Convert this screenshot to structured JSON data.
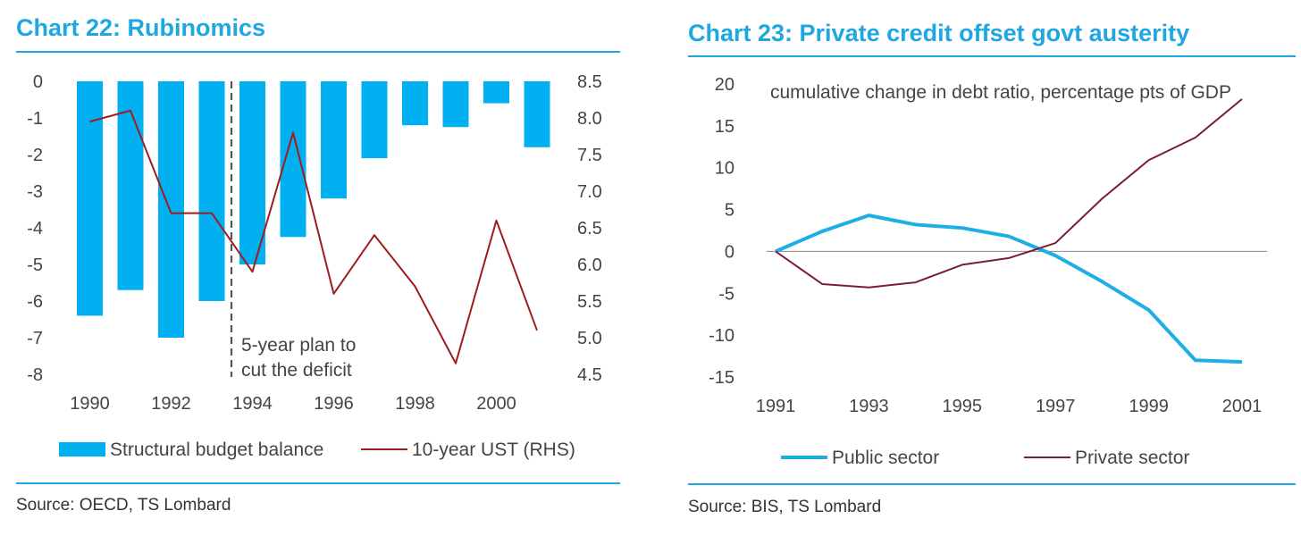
{
  "charts": [
    {
      "title": "Chart 22: Rubinomics",
      "source": "Source: OECD, TS Lombard",
      "annotation": [
        "5-year plan to",
        "cut the deficit"
      ],
      "legend": {
        "bar_label": "Structural budget balance",
        "line_label": "10-year UST (RHS)"
      }
    },
    {
      "title": "Chart 23: Private credit offset govt austerity",
      "source": "Source: BIS, TS Lombard",
      "subtitle": "cumulative change in debt ratio, percentage pts of GDP",
      "legend": {
        "series_1": "Public sector",
        "series_2": "Private sector"
      }
    }
  ],
  "colors": {
    "accent": "#1ea7e1",
    "bar": "#00b0f0",
    "line_red": "#a01c1c",
    "line_maroon": "#7b1c38",
    "line_blue": "#1eaee6"
  },
  "chart_data": [
    {
      "type": "bar",
      "title": "Chart 22: Rubinomics",
      "categories": [
        "1990",
        "1991",
        "1992",
        "1993",
        "1994",
        "1995",
        "1996",
        "1997",
        "1998",
        "1999",
        "2000",
        "2001"
      ],
      "x_tick_labels": [
        "1990",
        "1992",
        "1994",
        "1996",
        "1998",
        "2000"
      ],
      "series": [
        {
          "name": "Structural budget balance",
          "type": "bar",
          "axis": "left",
          "values": [
            -6.4,
            -5.7,
            -7.0,
            -6.0,
            -5.0,
            -4.25,
            -3.2,
            -2.1,
            -1.2,
            -1.25,
            -0.6,
            -1.8
          ]
        },
        {
          "name": "10-year UST (RHS)",
          "type": "line",
          "axis": "right",
          "values": [
            7.95,
            8.1,
            6.7,
            6.7,
            5.9,
            7.8,
            5.6,
            6.4,
            5.7,
            4.65,
            6.6,
            5.1
          ]
        }
      ],
      "ylim_left": [
        -8,
        0
      ],
      "yticks_left": [
        "0",
        "-1",
        "-2",
        "-3",
        "-4",
        "-5",
        "-6",
        "-7",
        "-8"
      ],
      "ylim_right": [
        4.5,
        8.5
      ],
      "yticks_right": [
        "8.5",
        "8.0",
        "7.5",
        "7.0",
        "6.5",
        "6.0",
        "5.5",
        "5.0",
        "4.5"
      ],
      "vline_label_between": [
        "1993",
        "1994"
      ],
      "grid": false,
      "legend": "bottom"
    },
    {
      "type": "line",
      "title": "Chart 23: Private credit offset govt austerity",
      "subtitle": "cumulative change in debt ratio, percentage pts of GDP",
      "x": [
        1991,
        1992,
        1993,
        1994,
        1995,
        1996,
        1997,
        1998,
        1999,
        2000,
        2001
      ],
      "x_tick_labels": [
        "1991",
        "1993",
        "1995",
        "1997",
        "1999",
        "2001"
      ],
      "series": [
        {
          "name": "Public sector",
          "values": [
            0,
            2.4,
            4.3,
            3.2,
            2.8,
            1.8,
            -0.5,
            -3.6,
            -7.0,
            -13.0,
            -13.2
          ]
        },
        {
          "name": "Private sector",
          "values": [
            0,
            -3.9,
            -4.3,
            -3.7,
            -1.6,
            -0.8,
            1.0,
            6.3,
            10.9,
            13.6,
            18.2
          ]
        }
      ],
      "ylim": [
        -15,
        20
      ],
      "yticks": [
        "20",
        "15",
        "10",
        "5",
        "0",
        "-5",
        "-10",
        "-15"
      ],
      "zero_line": true,
      "grid": false,
      "legend": "bottom"
    }
  ]
}
